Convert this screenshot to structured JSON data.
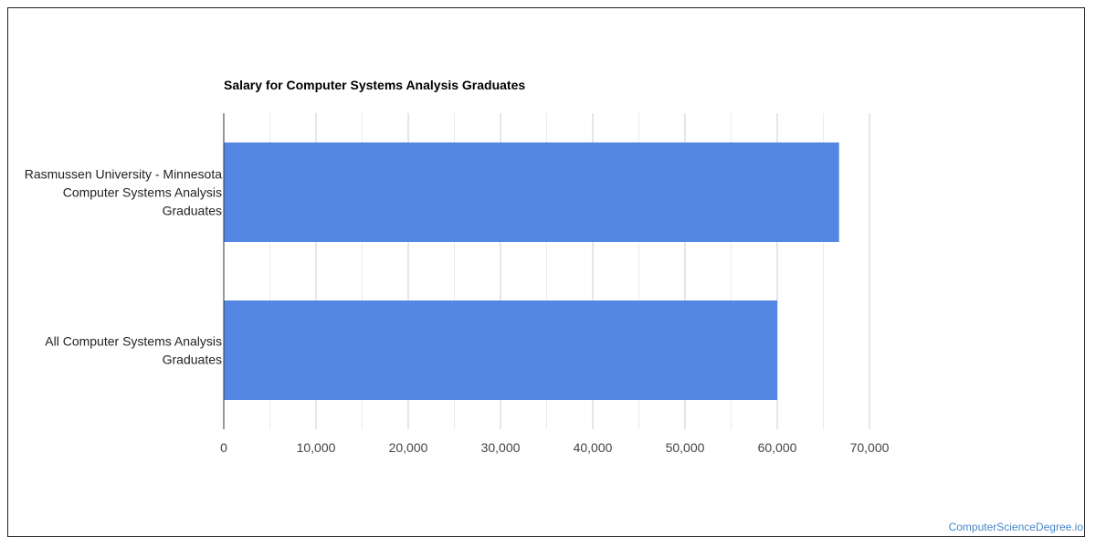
{
  "chart_data": {
    "type": "bar",
    "orientation": "horizontal",
    "title": "Salary for Computer Systems Analysis Graduates",
    "categories": [
      [
        "Rasmussen University - Minnesota",
        "Computer Systems Analysis",
        "Graduates"
      ],
      [
        "All Computer Systems Analysis",
        "Graduates"
      ]
    ],
    "values": [
      66700,
      60000
    ],
    "xlim": [
      0,
      70000
    ],
    "x_ticks": [
      0,
      10000,
      20000,
      30000,
      40000,
      50000,
      60000,
      70000
    ],
    "x_tick_labels": [
      "0",
      "10,000",
      "20,000",
      "30,000",
      "40,000",
      "50,000",
      "60,000",
      "70,000"
    ],
    "bar_color": "#5487e3",
    "grid": true,
    "xlabel": "",
    "ylabel": ""
  },
  "watermark": "ComputerScienceDegree.io"
}
